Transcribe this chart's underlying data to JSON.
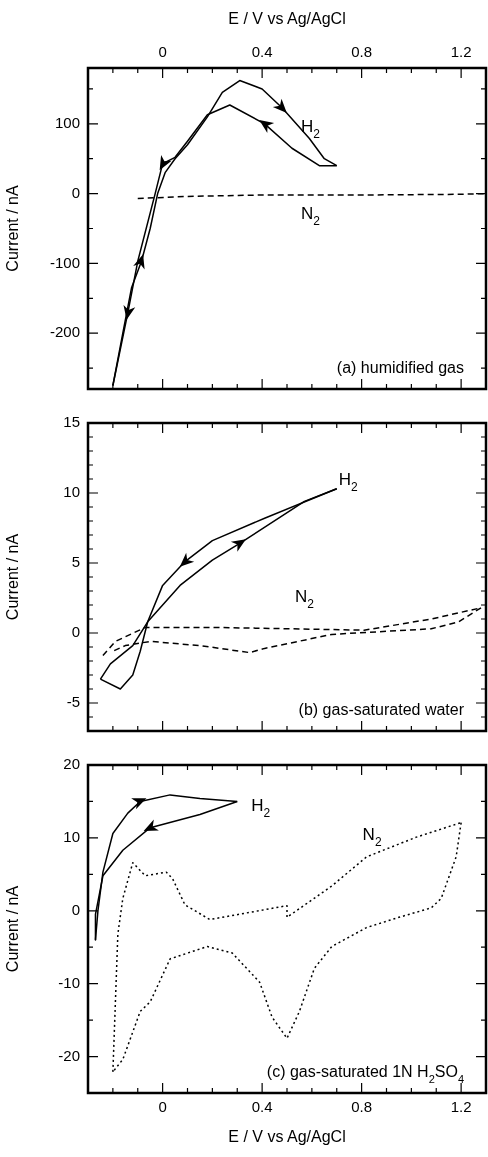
{
  "chart_data": [
    {
      "type": "line",
      "ylabel": "Current / nA",
      "x2label": "E / V vs Ag/AgCl",
      "xlim": [
        -0.3,
        1.3
      ],
      "x2lim": [
        -0.3,
        1.3
      ],
      "x2ticks": [
        {
          "value": -0.2,
          "label": null
        },
        {
          "value": -0.1,
          "label": null
        },
        0,
        {
          "value": 0.1,
          "label": null
        },
        {
          "value": 0.2,
          "label": null
        },
        {
          "value": 0.3,
          "label": null
        },
        0.4,
        {
          "value": 0.5,
          "label": null
        },
        {
          "value": 0.6,
          "label": null
        },
        {
          "value": 0.7,
          "label": null
        },
        0.8,
        {
          "value": 0.9,
          "label": null
        },
        {
          "value": 1.0,
          "label": null
        },
        {
          "value": 1.1,
          "label": null
        },
        1.2
      ],
      "ylim": [
        -280,
        180
      ],
      "yticks": [
        {
          "value": -250,
          "label": null
        },
        -200,
        {
          "value": -150,
          "label": null
        },
        -100,
        {
          "value": -50,
          "label": null
        },
        0,
        {
          "value": 50,
          "label": null
        },
        100,
        {
          "value": 150,
          "label": null
        }
      ],
      "annotations": [
        "(a) humidified gas"
      ],
      "series": [
        {
          "name": "H$_{2}$",
          "color": "#000000",
          "x": [
            -0.2,
            -0.16,
            -0.125,
            -0.085,
            -0.05,
            -0.02,
            0.01,
            0.05,
            0.1,
            0.18,
            0.24,
            0.31,
            0.4,
            0.48,
            0.59,
            0.65,
            0.7
          ],
          "values": [
            -275,
            -200,
            -135,
            -97,
            -50,
            0,
            30,
            50,
            70,
            110,
            145,
            162,
            150,
            123,
            79,
            50,
            40
          ]
        },
        {
          "color": "#000000",
          "x": [
            0.7,
            0.63,
            0.52,
            0.41,
            0.27,
            0.18,
            0.1,
            0.05,
            0,
            -0.03,
            -0.1,
            -0.14,
            -0.2
          ],
          "values": [
            40,
            40,
            65,
            100,
            127,
            113,
            75,
            52,
            43,
            0,
            -97,
            -171,
            -275
          ]
        },
        {
          "name": "N$_{2}$",
          "color": "#000000",
          "line_style": "dashed",
          "x": [
            -0.1,
            0.1,
            0.4,
            0.8,
            1.2,
            1.3
          ],
          "values": [
            -7,
            -4,
            -2,
            -2,
            -1,
            0
          ]
        }
      ]
    },
    {
      "type": "line",
      "ylabel": "Current / nA",
      "xlim": [
        -0.3,
        1.3
      ],
      "tick_labels": "y",
      "xticks": [
        {
          "value": -0.2,
          "label": null
        },
        {
          "value": -0.1,
          "label": null
        },
        {
          "value": 0,
          "label": null
        },
        {
          "value": 0.1,
          "label": null
        },
        {
          "value": 0.2,
          "label": null
        },
        {
          "value": 0.3,
          "label": null
        },
        {
          "value": 0.4,
          "label": null
        },
        {
          "value": 0.5,
          "label": null
        },
        {
          "value": 0.6,
          "label": null
        },
        {
          "value": 0.7,
          "label": null
        },
        {
          "value": 0.8,
          "label": null
        },
        {
          "value": 0.9,
          "label": null
        },
        {
          "value": 1.0,
          "label": null
        },
        {
          "value": 1.1,
          "label": null
        },
        {
          "value": 1.2,
          "label": null
        }
      ],
      "ylim": [
        -7,
        15
      ],
      "yticks": [
        {
          "value": -6,
          "label": null
        },
        -5,
        {
          "value": -4,
          "label": null
        },
        {
          "value": -3,
          "label": null
        },
        {
          "value": -2,
          "label": null
        },
        {
          "value": -1,
          "label": null
        },
        0,
        {
          "value": 1,
          "label": null
        },
        {
          "value": 2,
          "label": null
        },
        {
          "value": 3,
          "label": null
        },
        {
          "value": 4,
          "label": null
        },
        5,
        {
          "value": 6,
          "label": null
        },
        {
          "value": 7,
          "label": null
        },
        {
          "value": 8,
          "label": null
        },
        {
          "value": 9,
          "label": null
        },
        10,
        {
          "value": 11,
          "label": null
        },
        {
          "value": 12,
          "label": null
        },
        {
          "value": 13,
          "label": null
        },
        {
          "value": 14,
          "label": null
        },
        15
      ],
      "annotations": [
        "(b) gas-saturated water"
      ],
      "series": [
        {
          "name": "H$_{2}$",
          "color": "#000000",
          "x": [
            -0.25,
            -0.17,
            -0.12,
            -0.09,
            -0.06,
            0.07,
            0.2,
            0.31,
            0.57,
            0.7
          ],
          "values": [
            -3.3,
            -4.0,
            -3.0,
            -1.3,
            0.8,
            3.4,
            5.2,
            6.4,
            9.4,
            10.3
          ]
        },
        {
          "color": "#000000",
          "x": [
            0.7,
            0.41,
            0.2,
            0.09,
            0,
            -0.06,
            -0.12,
            -0.21,
            -0.25
          ],
          "values": [
            10.3,
            8.2,
            6.6,
            5.1,
            3.4,
            0.8,
            -0.9,
            -2.2,
            -3.3
          ]
        },
        {
          "name": "N$_{2}$",
          "color": "#000000",
          "line_style": "dashed",
          "x": [
            -0.24,
            -0.19,
            -0.07,
            0.2,
            0.52,
            0.81,
            1.08,
            1.28
          ],
          "values": [
            -1.6,
            -0.6,
            0.4,
            0.4,
            0.3,
            0.2,
            1.0,
            1.8
          ]
        },
        {
          "color": "#000000",
          "line_style": "dashed",
          "x": [
            1.28,
            1.19,
            1.08,
            0.68,
            0.41,
            0.35,
            0.15,
            -0.05,
            -0.15,
            -0.2
          ],
          "values": [
            1.8,
            0.8,
            0.3,
            -0.1,
            -1.1,
            -1.4,
            -0.9,
            -0.6,
            -0.9,
            -1.3
          ]
        }
      ]
    },
    {
      "type": "line",
      "ylabel": "Current / nA",
      "xlabel": "E / V vs Ag/AgCl",
      "xlim": [
        -0.3,
        1.3
      ],
      "xticks": [
        {
          "value": -0.2,
          "label": null
        },
        {
          "value": -0.1,
          "label": null
        },
        0,
        {
          "value": 0.1,
          "label": null
        },
        {
          "value": 0.2,
          "label": null
        },
        {
          "value": 0.3,
          "label": null
        },
        0.4,
        {
          "value": 0.5,
          "label": null
        },
        {
          "value": 0.6,
          "label": null
        },
        {
          "value": 0.7,
          "label": null
        },
        0.8,
        {
          "value": 0.9,
          "label": null
        },
        {
          "value": 1.0,
          "label": null
        },
        {
          "value": 1.1,
          "label": null
        },
        1.2
      ],
      "ylim": [
        -25,
        20
      ],
      "yticks": [
        -20,
        {
          "value": -15,
          "label": null
        },
        -10,
        {
          "value": -5,
          "label": null
        },
        0,
        {
          "value": 5,
          "label": null
        },
        10,
        {
          "value": 15,
          "label": null
        },
        20
      ],
      "annotations": [
        "(c) gas-saturated 1N H$_{2}$SO$_{4}$"
      ],
      "series": [
        {
          "name": "H$_{2}$",
          "color": "#000000",
          "x": [
            -0.27,
            -0.26,
            -0.24,
            -0.2,
            -0.14,
            -0.09,
            0.03,
            0.15,
            0.3
          ],
          "values": [
            -4,
            0,
            5.3,
            10.6,
            13.4,
            15,
            15.9,
            15.4,
            15
          ]
        },
        {
          "color": "#000000",
          "x": [
            0.3,
            0.15,
            -0.05,
            -0.16,
            -0.24,
            -0.27,
            -0.27
          ],
          "values": [
            15,
            13.2,
            11.4,
            8.3,
            4.8,
            -0.5,
            -4
          ]
        },
        {
          "name": "N$_{2}$",
          "color": "#000000",
          "line_style": "dotted",
          "x": [
            -0.2,
            -0.18,
            -0.16,
            -0.12,
            -0.07,
            0.015,
            0.04,
            0.09,
            0.19,
            0.5,
            0.5,
            0.68,
            0.82,
            1.02,
            1.2
          ],
          "values": [
            -22.1,
            -3.2,
            1.7,
            6.6,
            4.8,
            5.3,
            4.4,
            0.8,
            -1.2,
            0.7,
            -0.9,
            3.4,
            7.4,
            10.1,
            12.1
          ]
        },
        {
          "color": "#000000",
          "line_style": "dotted",
          "x": [
            1.2,
            1.18,
            1.12,
            1.08,
            0.95,
            0.82,
            0.68,
            0.61,
            0.55,
            0.5,
            0.44,
            0.39,
            0.28,
            0.18,
            0.03,
            -0.05,
            -0.09,
            -0.16,
            -0.2
          ],
          "values": [
            12.1,
            7.4,
            1.7,
            0.4,
            -0.9,
            -2.3,
            -4.9,
            -7.9,
            -13.8,
            -17.5,
            -14.6,
            -9.8,
            -5.8,
            -4.9,
            -6.6,
            -12.5,
            -13.8,
            -20.4,
            -22.1
          ]
        }
      ]
    }
  ]
}
